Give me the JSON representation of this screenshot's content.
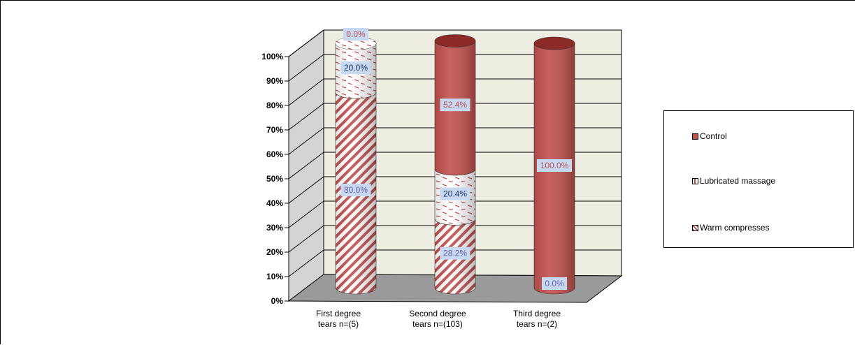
{
  "chart_data": {
    "type": "bar",
    "stacked": true,
    "percent_stacked": true,
    "three_d": true,
    "bar_shape": "cylinder",
    "categories": [
      "First degree tears n=(5)",
      "Second degree tears n=(103)",
      "Third degree tears n=(2)"
    ],
    "category_lines": [
      [
        "First degree",
        "tears n=(5)"
      ],
      [
        "Second degree",
        "tears n=(103)"
      ],
      [
        "Third degree",
        "tears n=(2)"
      ]
    ],
    "series": [
      {
        "name": "Warm compresses",
        "values": [
          80.0,
          28.2,
          0.0
        ],
        "labels": [
          "80.0%",
          "28.2%",
          "0.0%"
        ],
        "pattern": "diagonal-stripes"
      },
      {
        "name": "Lubricated massage",
        "values": [
          20.0,
          20.4,
          0.0
        ],
        "labels": [
          "20.0%",
          "20.4%",
          ""
        ],
        "pattern": "dashes"
      },
      {
        "name": "Control",
        "values": [
          0.0,
          52.4,
          100.0
        ],
        "labels": [
          "0.0%",
          "52.4%",
          "100.0%"
        ],
        "pattern": "solid"
      }
    ],
    "legend_order": [
      "Control",
      "Lubricated massage",
      "Warm compresses"
    ],
    "yticks": [
      "0%",
      "10%",
      "20%",
      "30%",
      "40%",
      "50%",
      "60%",
      "70%",
      "80%",
      "90%",
      "100%"
    ],
    "ylim": [
      0,
      100
    ],
    "grid": true,
    "legend_position": "right",
    "title": "",
    "xlabel": "",
    "ylabel": "",
    "colors": {
      "control": "#c0504d",
      "control_dark": "#8c2a28",
      "stripe": "#c0504d",
      "plot_back": "#eeede2",
      "floor": "#9a9a9a",
      "wall_side": "#d4d4d4",
      "label_bg": "#c6d9f1",
      "label_text_red": "#c0504d",
      "label_text_blue": "#1f3864"
    }
  }
}
